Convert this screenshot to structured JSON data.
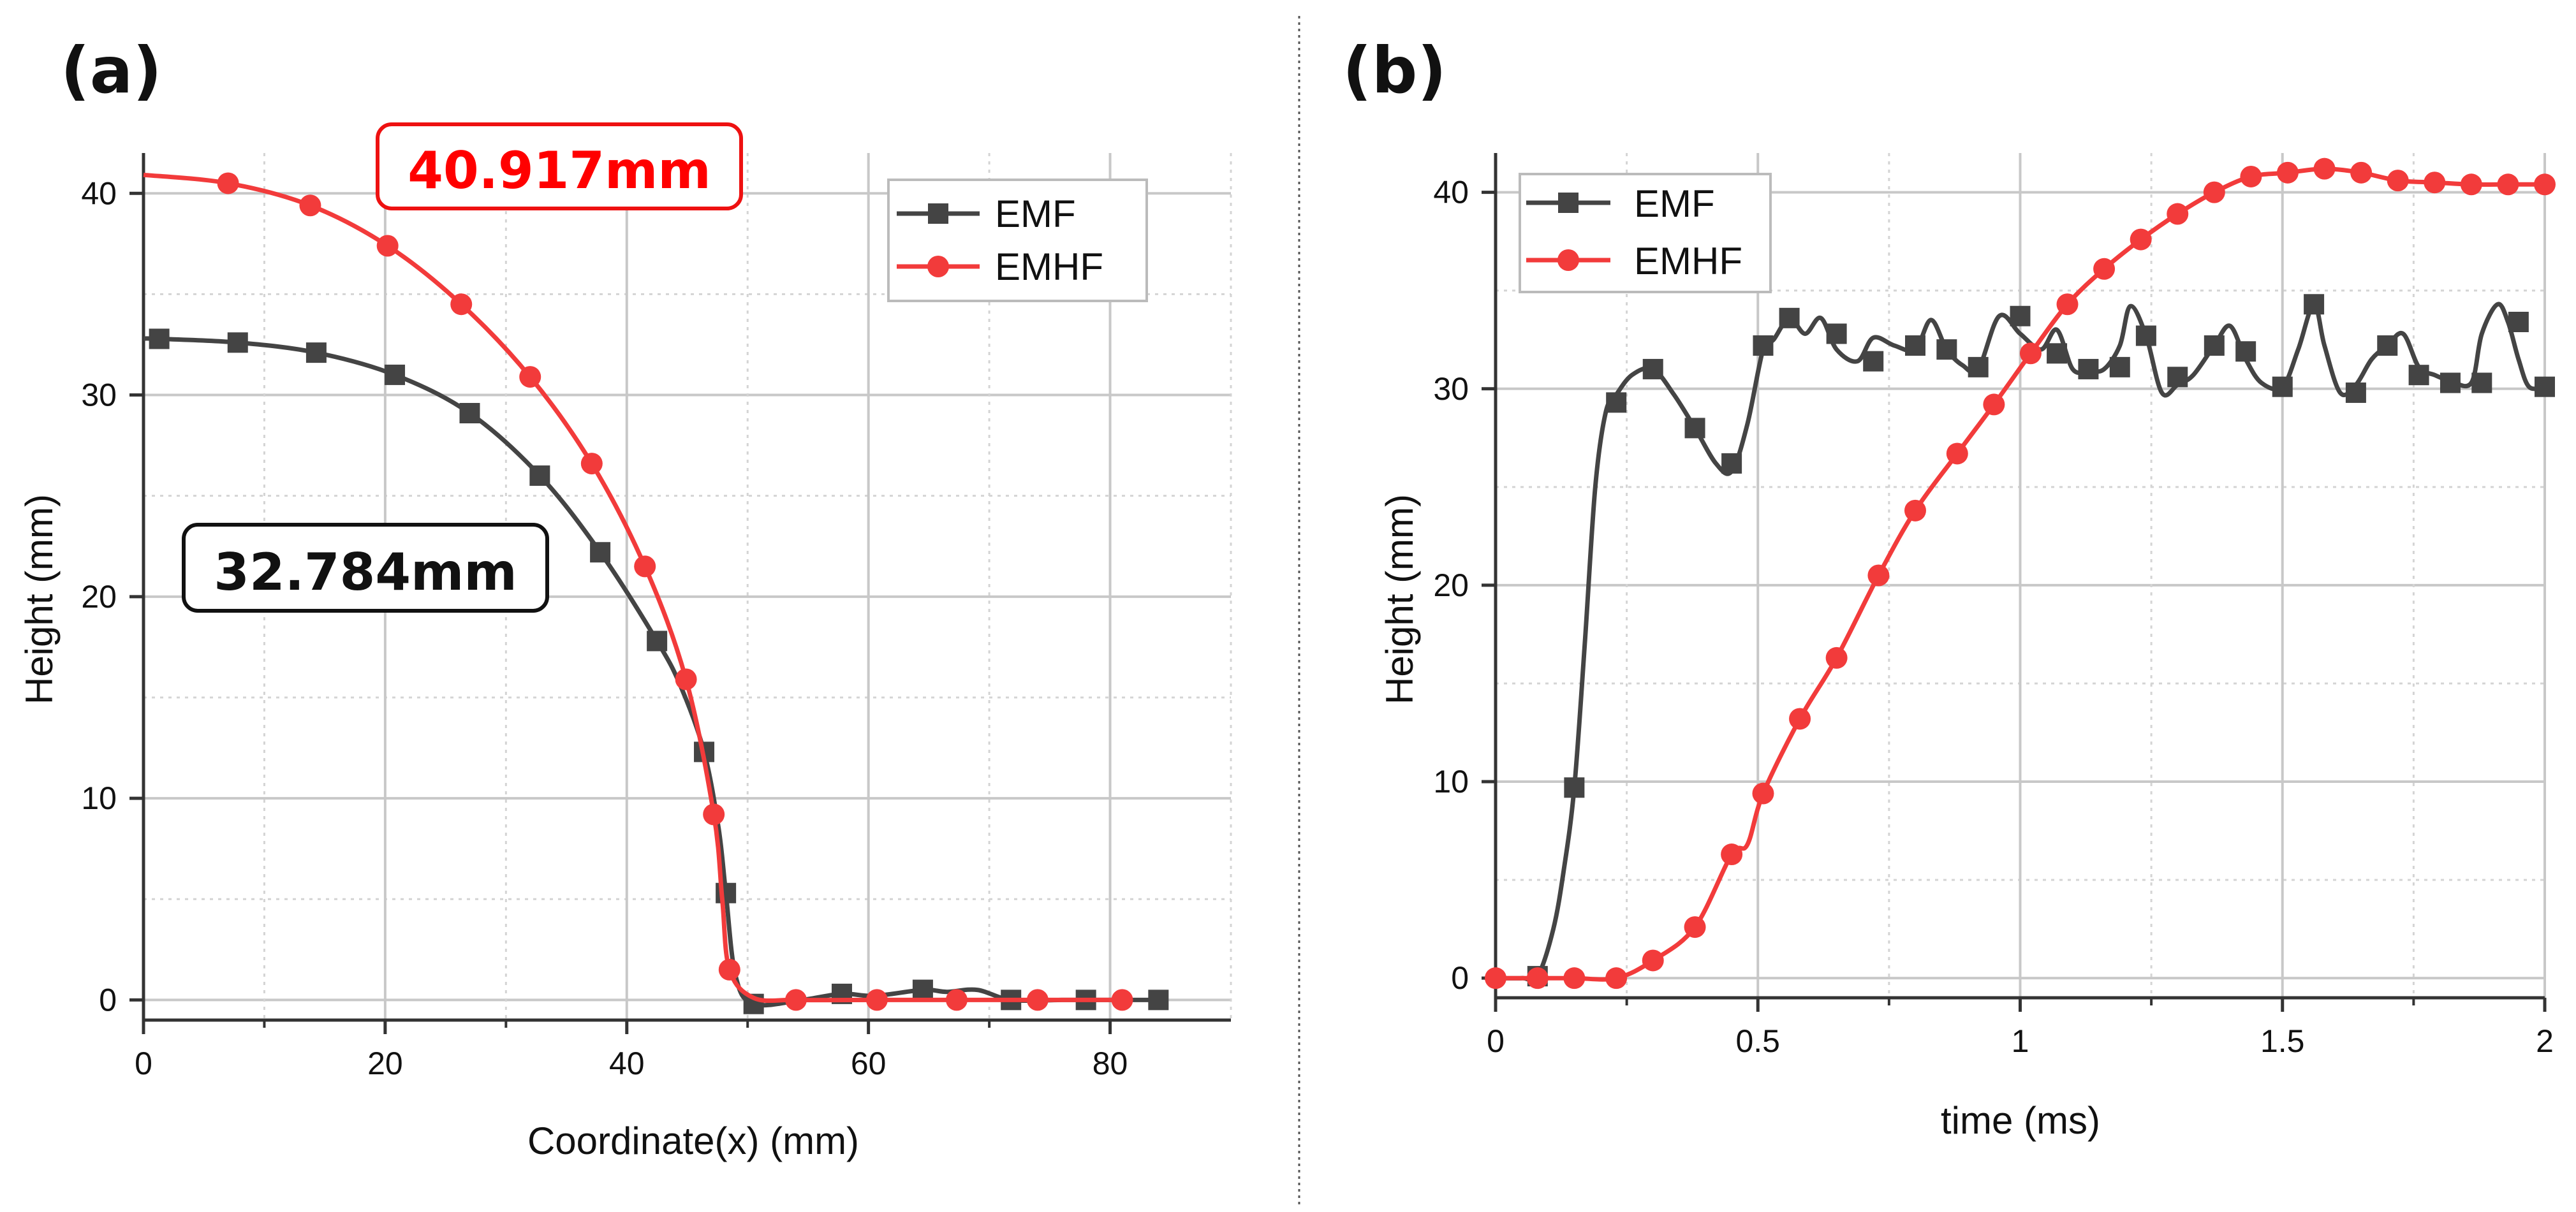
{
  "colors": {
    "emf": "#444444",
    "emhf": "#f23b3b",
    "callout_red": "#ff0000",
    "grid": "#c8c8c8",
    "axis": "#333333"
  },
  "chart_data": [
    {
      "panel": "(a)",
      "type": "line",
      "title": "",
      "xlabel": "Coordinate(x) (mm)",
      "ylabel": "Height (mm)",
      "xlim": [
        0,
        90
      ],
      "ylim": [
        -1,
        42
      ],
      "xticks": [
        0,
        20,
        40,
        60,
        80
      ],
      "yticks": [
        0,
        10,
        20,
        30,
        40
      ],
      "grid": true,
      "legend_position": "top-right",
      "series": [
        {
          "name": "EMF",
          "marker": "square",
          "color": "#444444",
          "x": [
            0,
            1.3,
            7.8,
            14.3,
            20.8,
            27.0,
            32.8,
            37.8,
            42.5,
            44.5,
            46.4,
            47.6,
            48.2,
            49.0,
            50.5,
            54.5,
            57.8,
            60.5,
            64.5,
            66.5,
            69.0,
            71.8,
            76.0,
            78.0,
            84.0
          ],
          "y": [
            32.8,
            32.784,
            32.6,
            32.1,
            31.0,
            29.1,
            26.0,
            22.2,
            17.8,
            15.5,
            12.3,
            8.5,
            5.3,
            1.2,
            -0.2,
            0.0,
            0.3,
            0.2,
            0.5,
            0.4,
            0.5,
            0.0,
            0.0,
            0.0,
            0.0
          ],
          "marker_x": [
            1.3,
            7.8,
            14.3,
            20.8,
            27.0,
            32.8,
            37.8,
            42.5,
            46.4,
            48.2,
            50.5,
            57.8,
            64.5,
            71.8,
            78.0,
            84.0
          ],
          "marker_y": [
            32.784,
            32.6,
            32.1,
            31.0,
            29.1,
            26.0,
            22.2,
            17.8,
            12.3,
            5.3,
            -0.2,
            0.3,
            0.5,
            0.0,
            0.0,
            0.0
          ]
        },
        {
          "name": "EMHF",
          "marker": "circle",
          "color": "#f23b3b",
          "x": [
            0,
            7.0,
            13.8,
            20.2,
            26.3,
            32.0,
            37.1,
            41.5,
            44.9,
            47.2,
            47.9,
            48.5,
            50.5,
            54.0,
            60.7,
            67.3,
            74.0,
            81.0
          ],
          "y": [
            40.917,
            40.5,
            39.4,
            37.4,
            34.5,
            30.9,
            26.6,
            21.5,
            15.9,
            9.2,
            5.0,
            1.5,
            0.1,
            0.0,
            0.0,
            0.0,
            0.0,
            0.0
          ],
          "marker_x": [
            7.0,
            13.8,
            20.2,
            26.3,
            32.0,
            37.1,
            41.5,
            44.9,
            47.2,
            48.5,
            54.0,
            60.7,
            67.3,
            74.0,
            81.0
          ],
          "marker_y": [
            40.5,
            39.4,
            37.4,
            34.5,
            30.9,
            26.6,
            21.5,
            15.9,
            9.2,
            1.5,
            0.0,
            0.0,
            0.0,
            0.0,
            0.0
          ]
        }
      ],
      "annotations": [
        {
          "text": "40.917mm",
          "color": "red"
        },
        {
          "text": "32.784mm",
          "color": "black"
        }
      ]
    },
    {
      "panel": "(b)",
      "type": "line",
      "title": "",
      "xlabel": "time (ms)",
      "ylabel": "Height (mm)",
      "xlim": [
        0,
        2
      ],
      "ylim": [
        -1,
        42
      ],
      "xticks": [
        0,
        0.5,
        1,
        1.5,
        2
      ],
      "xtick_labels": [
        "0",
        "0.5",
        "1",
        "1.5",
        "2"
      ],
      "yticks": [
        0,
        10,
        20,
        30,
        40
      ],
      "grid": true,
      "legend_position": "top-left",
      "series": [
        {
          "name": "EMF",
          "marker": "square",
          "color": "#444444",
          "x": [
            0,
            0.05,
            0.08,
            0.11,
            0.13,
            0.15,
            0.17,
            0.19,
            0.21,
            0.23,
            0.26,
            0.3,
            0.34,
            0.38,
            0.42,
            0.45,
            0.48,
            0.51,
            0.53,
            0.56,
            0.59,
            0.62,
            0.65,
            0.69,
            0.72,
            0.76,
            0.8,
            0.83,
            0.86,
            0.89,
            0.92,
            0.96,
            1.0,
            1.04,
            1.07,
            1.1,
            1.13,
            1.16,
            1.19,
            1.21,
            1.24,
            1.27,
            1.3,
            1.33,
            1.37,
            1.4,
            1.43,
            1.46,
            1.5,
            1.53,
            1.56,
            1.58,
            1.61,
            1.64,
            1.67,
            1.7,
            1.73,
            1.76,
            1.79,
            1.82,
            1.86,
            1.88,
            1.91,
            1.93,
            1.95,
            1.97,
            2.0
          ],
          "y": [
            0,
            0,
            0.1,
            2.5,
            5.5,
            9.7,
            17,
            25,
            28.8,
            29.7,
            30.7,
            31.0,
            29.7,
            28.0,
            26.2,
            25.8,
            28.2,
            32.0,
            32.5,
            33.6,
            32.8,
            33.6,
            32.0,
            31.4,
            32.6,
            32.2,
            32.0,
            33.5,
            32.0,
            31.2,
            31.0,
            33.7,
            32.8,
            32.0,
            33.0,
            31.0,
            30.9,
            31.0,
            32.2,
            34.2,
            32.7,
            29.8,
            30.2,
            30.7,
            32.2,
            33.2,
            31.5,
            30.3,
            30.1,
            32.0,
            34.3,
            32.2,
            29.8,
            30.2,
            31.5,
            32.2,
            32.8,
            31.1,
            30.7,
            30.4,
            30.3,
            32.8,
            34.3,
            33.4,
            31.5,
            30.1,
            30.1
          ],
          "marker_x": [
            0.08,
            0.15,
            0.23,
            0.3,
            0.38,
            0.45,
            0.51,
            0.56,
            0.65,
            0.72,
            0.8,
            0.86,
            0.92,
            1.0,
            1.07,
            1.13,
            1.19,
            1.24,
            1.3,
            1.37,
            1.43,
            1.5,
            1.56,
            1.64,
            1.7,
            1.76,
            1.82,
            1.88,
            1.95,
            2.0
          ],
          "marker_y": [
            0.1,
            9.7,
            29.3,
            31.0,
            28.0,
            26.2,
            32.2,
            33.6,
            32.8,
            31.4,
            32.2,
            32.0,
            31.1,
            33.7,
            31.8,
            31.0,
            31.1,
            32.7,
            30.6,
            32.2,
            31.9,
            30.1,
            34.3,
            29.8,
            32.2,
            30.7,
            30.3,
            30.3,
            33.4,
            30.1
          ]
        },
        {
          "name": "EMHF",
          "marker": "circle",
          "color": "#f23b3b",
          "x": [
            0,
            0.08,
            0.15,
            0.23,
            0.3,
            0.38,
            0.45,
            0.48,
            0.51,
            0.58,
            0.65,
            0.73,
            0.8,
            0.88,
            0.95,
            1.02,
            1.09,
            1.16,
            1.23,
            1.3,
            1.37,
            1.44,
            1.51,
            1.58,
            1.65,
            1.72,
            1.79,
            1.86,
            1.93,
            2.0
          ],
          "y": [
            0,
            0,
            0,
            0,
            0.9,
            2.6,
            6.3,
            6.8,
            9.4,
            13.2,
            16.3,
            20.5,
            23.8,
            26.7,
            29.2,
            31.8,
            34.3,
            36.1,
            37.6,
            38.9,
            40.0,
            40.8,
            41.0,
            41.2,
            41.0,
            40.6,
            40.5,
            40.4,
            40.4,
            40.4
          ],
          "marker_x": [
            0,
            0.08,
            0.15,
            0.23,
            0.3,
            0.38,
            0.45,
            0.51,
            0.58,
            0.65,
            0.73,
            0.8,
            0.88,
            0.95,
            1.02,
            1.09,
            1.16,
            1.23,
            1.3,
            1.37,
            1.44,
            1.51,
            1.58,
            1.65,
            1.72,
            1.79,
            1.86,
            1.93,
            2.0
          ],
          "marker_y": [
            0,
            0,
            0,
            0,
            0.9,
            2.6,
            6.3,
            9.4,
            13.2,
            16.3,
            20.5,
            23.8,
            26.7,
            29.2,
            31.8,
            34.3,
            36.1,
            37.6,
            38.9,
            40.0,
            40.8,
            41.0,
            41.2,
            41.0,
            40.6,
            40.5,
            40.4,
            40.4,
            40.4
          ]
        }
      ],
      "annotations": []
    }
  ]
}
